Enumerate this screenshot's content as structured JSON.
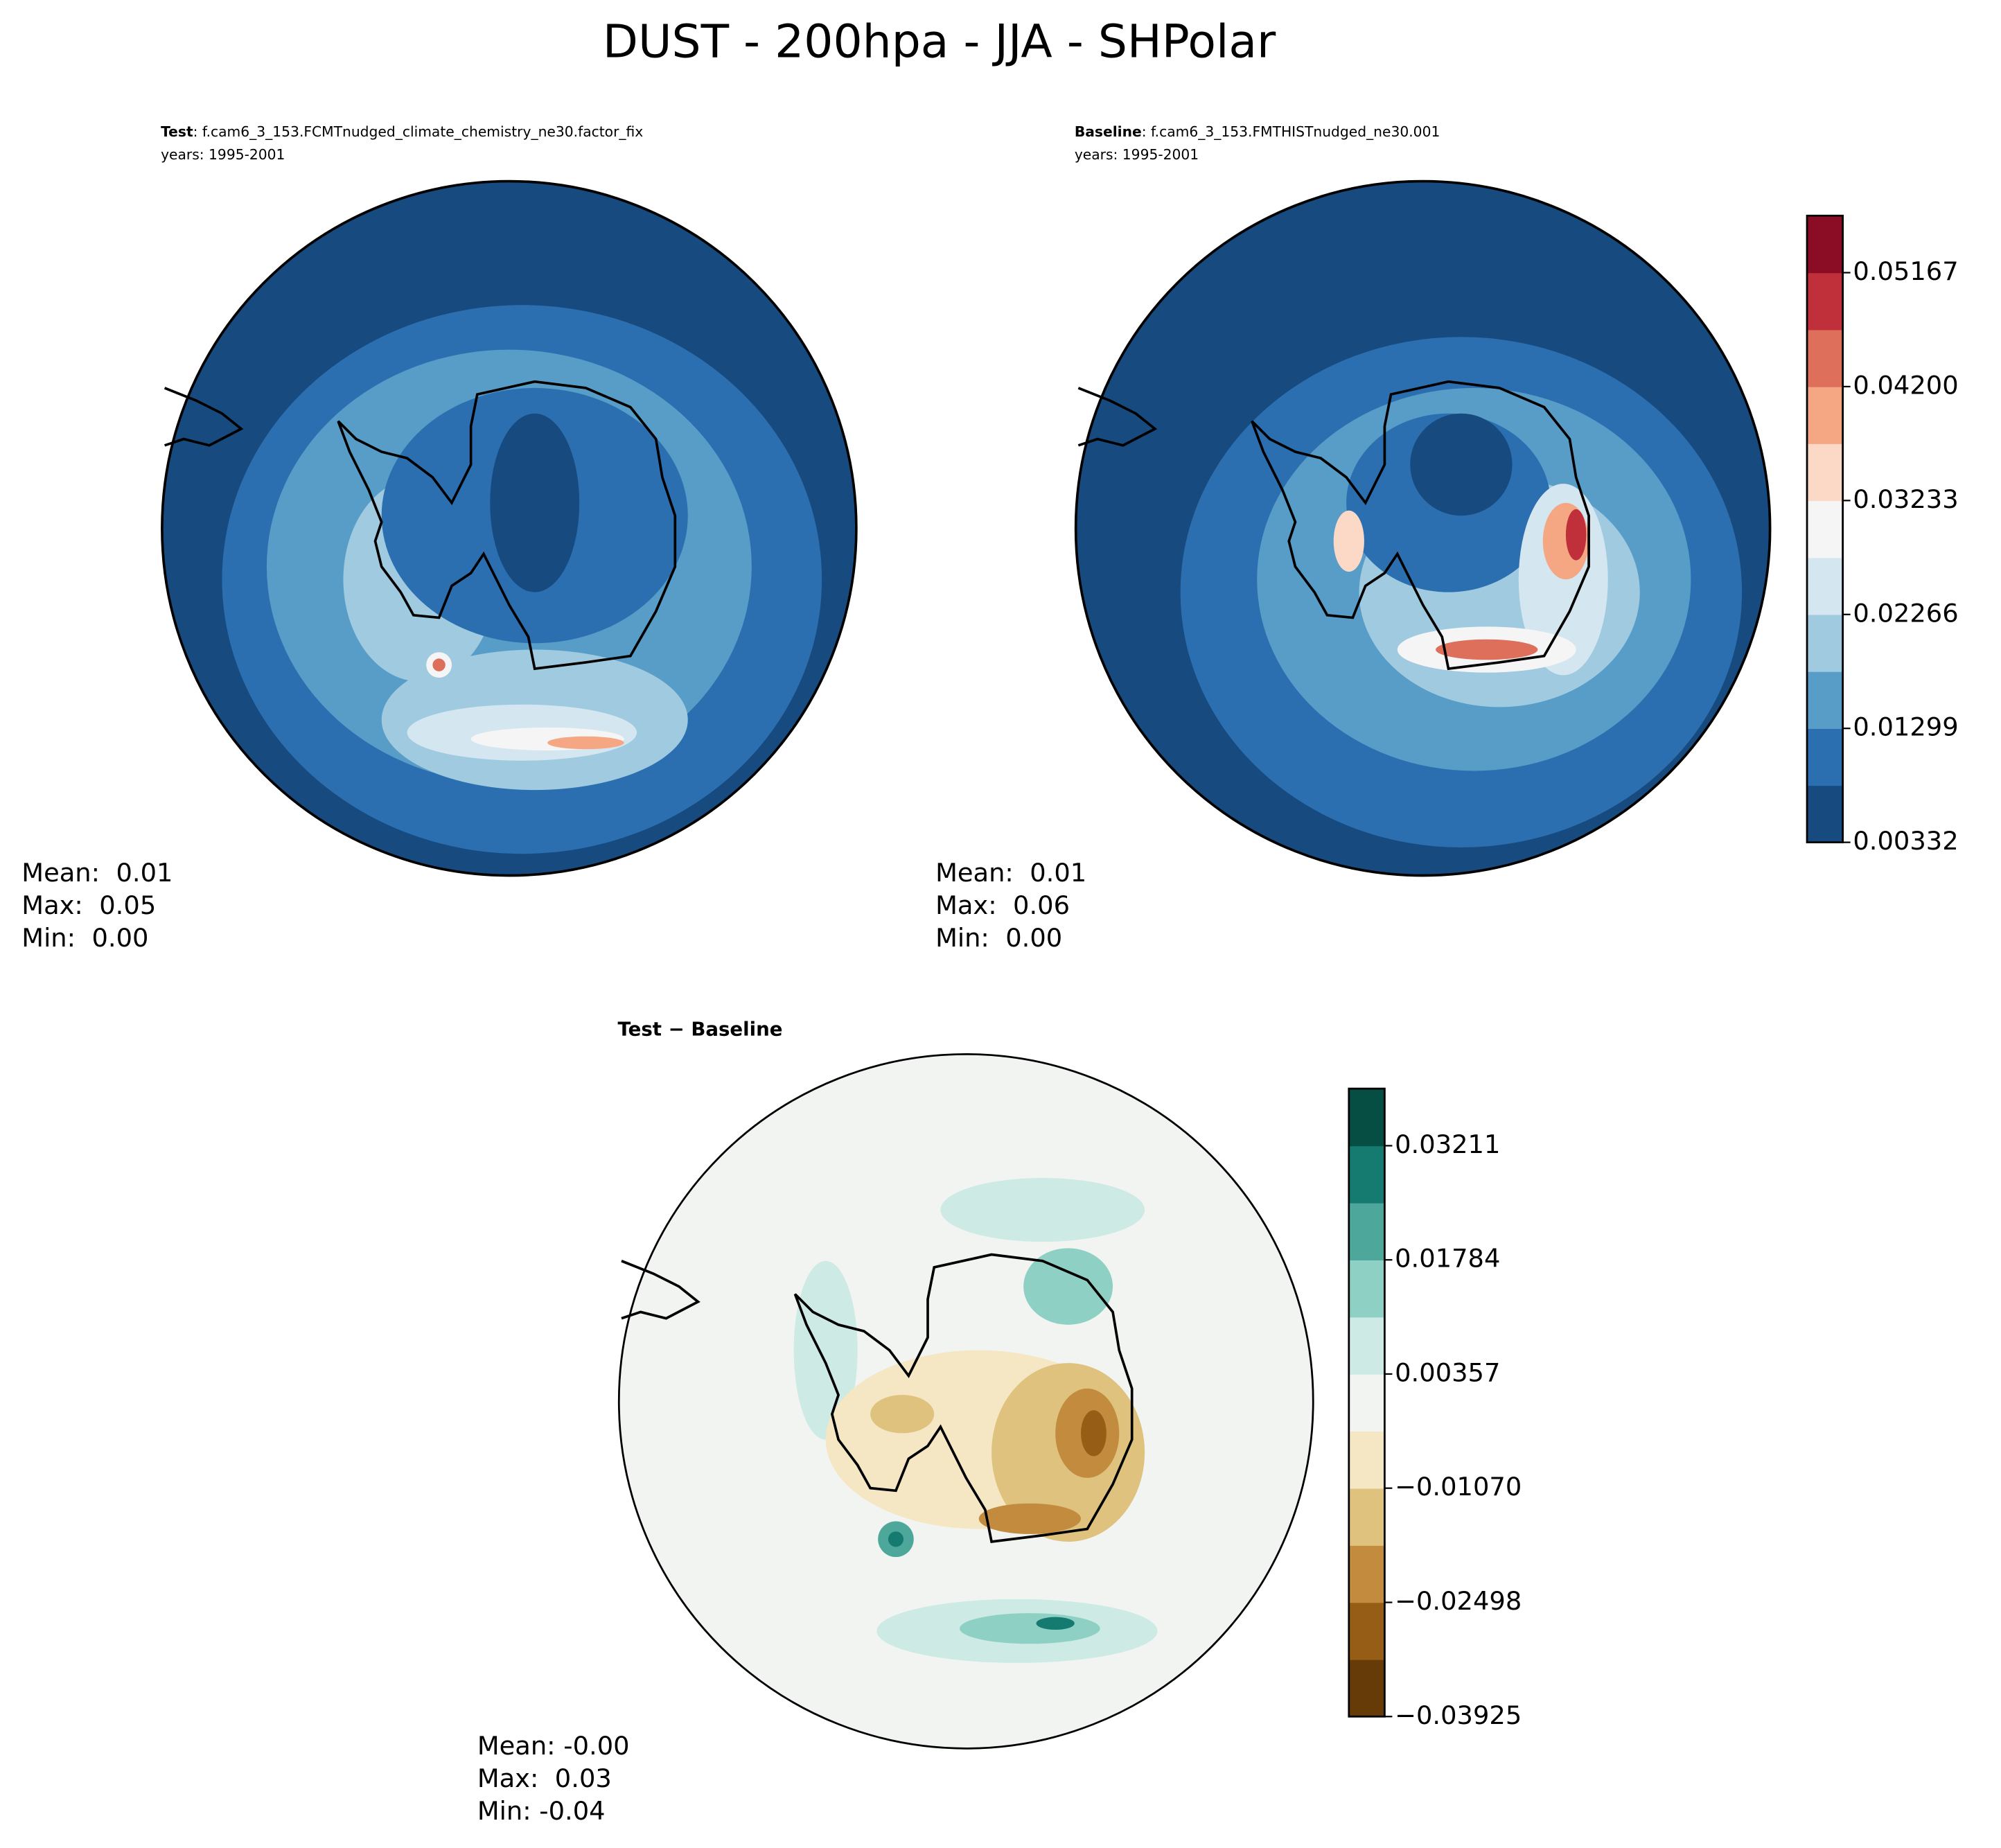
{
  "title": "DUST - 200hpa - JJA - SHPolar",
  "chart_data": [
    {
      "type": "map",
      "label": "Test",
      "case": ": f.cam6_3_153.FCMTnudged_climate_chemistry_ne30.factor_fix",
      "years": "years: 1995-2001",
      "stats": [
        "Mean:  0.01",
        "Max:  0.05",
        "Min:  0.00"
      ]
    },
    {
      "type": "map",
      "label": "Baseline",
      "case": ": f.cam6_3_153.FMTHISTnudged_ne30.001",
      "years": "years: 1995-2001",
      "stats": [
        "Mean:  0.01",
        "Max:  0.06",
        "Min:  0.00"
      ],
      "colorbar": {
        "ylim": [
          0.00332,
          0.056505
        ],
        "yticks": [
          0.00332,
          0.01299,
          0.02266,
          0.03233,
          {
            "value": 0.042,
            "label": "0.04200"
          },
          0.05167
        ],
        "colors": [
          "#174a7e",
          "#2b6fb0",
          "#579dc8",
          "#9fcae0",
          "#d4e6f0",
          "#f5f5f5",
          "#fcd9c6",
          "#f5a784",
          "#de6f5a",
          "#c0303a",
          "#8a0c25"
        ]
      }
    },
    {
      "type": "map",
      "label": "Test − Baseline",
      "stats": [
        "Mean: -0.00",
        "Max:  0.03",
        "Min: -0.04"
      ],
      "colorbar": {
        "ylim": [
          -0.03925,
          0.039245
        ],
        "yticks": [
          {
            "value": -0.03925,
            "label": "−0.03925"
          },
          {
            "value": -0.02498,
            "label": "−0.02498"
          },
          {
            "value": -0.0107,
            "label": "−0.01070"
          },
          0.00357,
          0.01784,
          0.03211
        ],
        "colors": [
          "#673b08",
          "#955d16",
          "#c28b3e",
          "#dfc27d",
          "#f5e6c4",
          "#f2f4f2",
          "#cdeae5",
          "#8fd0c4",
          "#4da89b",
          "#157a70",
          "#064d43"
        ]
      }
    }
  ]
}
